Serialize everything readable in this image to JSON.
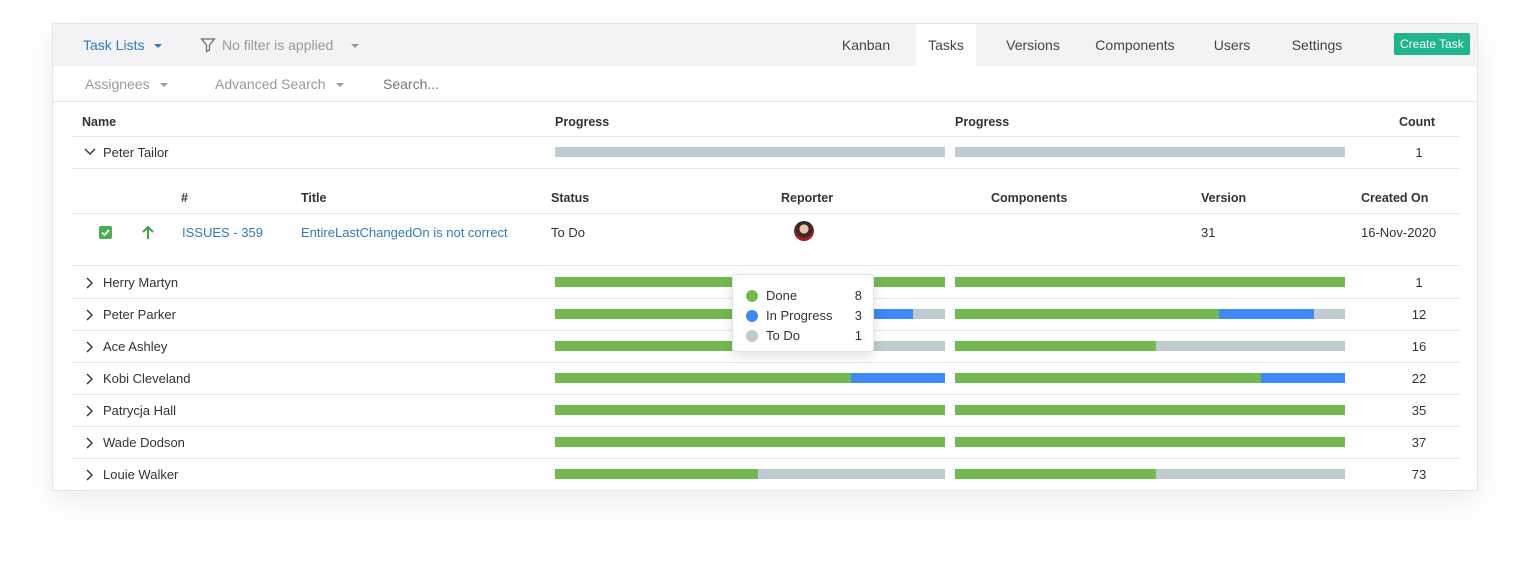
{
  "toolbar": {
    "task_lists": "Task Lists",
    "filter": "No filter is applied",
    "tabs": [
      "Kanban",
      "Tasks",
      "Versions",
      "Components",
      "Users",
      "Settings"
    ],
    "active_tab": "Tasks",
    "create_task": "Create Task"
  },
  "subbar": {
    "assignees": "Assignees",
    "advanced_search": "Advanced Search",
    "search_placeholder": "Search..."
  },
  "table": {
    "headers": {
      "name": "Name",
      "progress1": "Progress",
      "progress2": "Progress",
      "count": "Count"
    }
  },
  "expanded": {
    "name": "Peter Tailor",
    "count": "1",
    "progress1": {
      "done": 0,
      "in_progress": 0,
      "todo": 1
    },
    "progress2": {
      "done": 0,
      "in_progress": 0,
      "todo": 1
    },
    "subheaders": {
      "num": "#",
      "title": "Title",
      "status": "Status",
      "reporter": "Reporter",
      "components": "Components",
      "version": "Version",
      "created": "Created On"
    },
    "task": {
      "id": "ISSUES - 359",
      "title": "EntireLastChangedOn is not correct",
      "status": "To Do",
      "components": "",
      "version": "31",
      "created": "16-Nov-2020",
      "checked": true,
      "priority_icon": "arrow-up-icon"
    }
  },
  "groups": [
    {
      "name": "Herry Martyn",
      "count": "1",
      "p1": [
        1,
        0,
        0
      ],
      "p2": [
        1,
        0,
        0
      ]
    },
    {
      "name": "Peter Parker",
      "count": "12",
      "p1": [
        0.667,
        0.25,
        0.083
      ],
      "p2": [
        0.677,
        0.243,
        0.08
      ]
    },
    {
      "name": "Ace Ashley",
      "count": "16",
      "p1": [
        0.515,
        0,
        0.485
      ],
      "p2": [
        0.515,
        0,
        0.485
      ]
    },
    {
      "name": "Kobi Cleveland",
      "count": "22",
      "p1": [
        0.76,
        0.24,
        0
      ],
      "p2": [
        0.785,
        0.215,
        0
      ]
    },
    {
      "name": "Patrycja Hall",
      "count": "35",
      "p1": [
        1,
        0,
        0
      ],
      "p2": [
        1,
        0,
        0
      ]
    },
    {
      "name": "Wade Dodson",
      "count": "37",
      "p1": [
        1,
        0,
        0
      ],
      "p2": [
        1,
        0,
        0
      ]
    },
    {
      "name": "Louie Walker",
      "count": "73",
      "p1": [
        0.52,
        0,
        0.48
      ],
      "p2": [
        0.515,
        0,
        0.485
      ]
    }
  ],
  "tooltip": {
    "items": [
      {
        "label": "Done",
        "value": "8"
      },
      {
        "label": "In Progress",
        "value": "3"
      },
      {
        "label": "To Do",
        "value": "1"
      }
    ]
  },
  "colors": {
    "done": "#74b852",
    "in_progress": "#3d89f5",
    "todo": "#bfcbd0",
    "accent": "#1fb48a",
    "link": "#337ab7"
  }
}
